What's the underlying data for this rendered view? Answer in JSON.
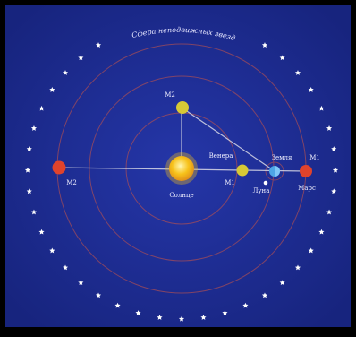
{
  "diagram": {
    "sphere_caption": "Сфера неподвижных звезд",
    "labels": {
      "sun": "Солнце",
      "venus": "Венера",
      "earth": "Земля",
      "moon": "Луна",
      "mars": "Марс",
      "m2_left": "М2",
      "m2_top": "М2",
      "m1_venus": "М1",
      "m1_mars": "М1"
    },
    "colors": {
      "background": "#1f2f9a",
      "sun": "#f7c21a",
      "venus": "#d7c935",
      "earth": "#4ea6e6",
      "mars": "#e0432c",
      "moon": "#ffffff",
      "stars": "#ffffff",
      "orbits": "#b65050",
      "lines": "#d9d9e6"
    }
  }
}
